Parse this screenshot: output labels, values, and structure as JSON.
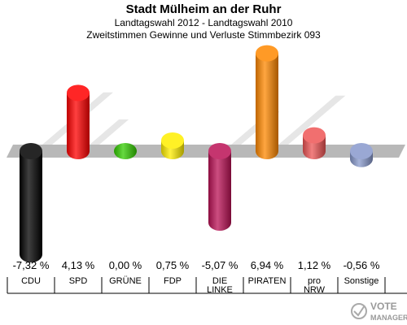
{
  "title": "Stadt Mülheim an der Ruhr",
  "subtitle1": "Landtagswahl 2012 - Landtagswahl 2010",
  "subtitle2": "Zweitstimmen Gewinne und Verluste Stimmbezirk 093",
  "logo": {
    "line1": "VOTE",
    "line2": "MANAGER"
  },
  "chart_data": {
    "type": "bar",
    "title": "Stadt Mülheim an der Ruhr",
    "subtitle": "Landtagswahl 2012 - Landtagswahl 2010 / Zweitstimmen Gewinne und Verluste Stimmbezirk 093",
    "categories": [
      [
        "CDU"
      ],
      [
        "SPD"
      ],
      [
        "GRÜNE"
      ],
      [
        "FDP"
      ],
      [
        "DIE",
        "LINKE"
      ],
      [
        "PIRATEN"
      ],
      [
        "pro",
        "NRW"
      ],
      [
        "Sonstige"
      ]
    ],
    "values": [
      -7.32,
      4.13,
      0.0,
      0.75,
      -5.07,
      6.94,
      1.12,
      -0.56
    ],
    "value_labels": [
      "-7,32 %",
      "4,13 %",
      "0,00 %",
      "0,75 %",
      "-5,07 %",
      "6,94 %",
      "1,12 %",
      "-0,56 %"
    ],
    "colors": [
      "#000000",
      "#ff0000",
      "#33cc00",
      "#ffee00",
      "#bb1155",
      "#ff8800",
      "#ee5555",
      "#8899cc"
    ],
    "ylim": [
      -7.32,
      6.94
    ]
  }
}
